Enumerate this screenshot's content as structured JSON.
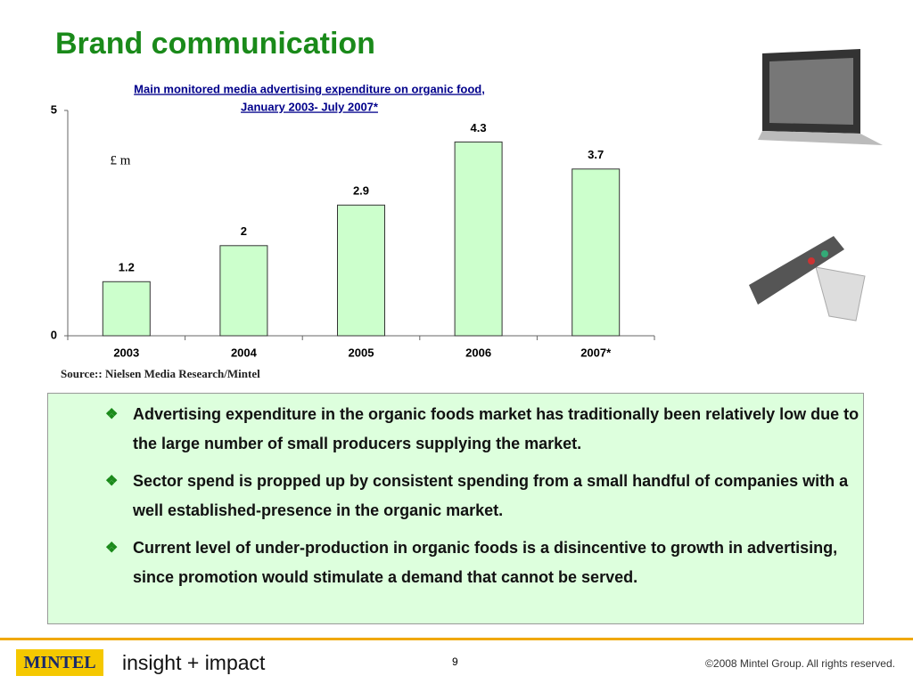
{
  "header": {
    "title": "Brand communication"
  },
  "chart_data": {
    "type": "bar",
    "title": [
      "Main monitored media advertising expenditure on organic food,",
      "January 2003- July 2007*"
    ],
    "unit_label": "£ m",
    "categories": [
      "2003",
      "2004",
      "2005",
      "2006",
      "2007*"
    ],
    "values": [
      1.2,
      2,
      2.9,
      4.3,
      3.7
    ],
    "color": "#ccffcc",
    "ylim": [
      0,
      5
    ],
    "yticks": [
      0,
      5
    ],
    "grid": false,
    "source": "Source:: Nielsen Media Research/Mintel"
  },
  "bullets": [
    "Advertising expenditure in the organic foods market has traditionally been relatively low due to the large number of small producers supplying the market.",
    "Sector spend is propped up by consistent spending from a small handful of companies with a well established-presence in the organic market.",
    "Current level of under-production in organic foods is a disincentive to growth in advertising, since promotion would stimulate a demand that cannot be served."
  ],
  "footer": {
    "logo": "MINTEL",
    "tagline": "insight + impact",
    "page": "9",
    "copyright": "©2008 Mintel Group. All rights reserved."
  }
}
